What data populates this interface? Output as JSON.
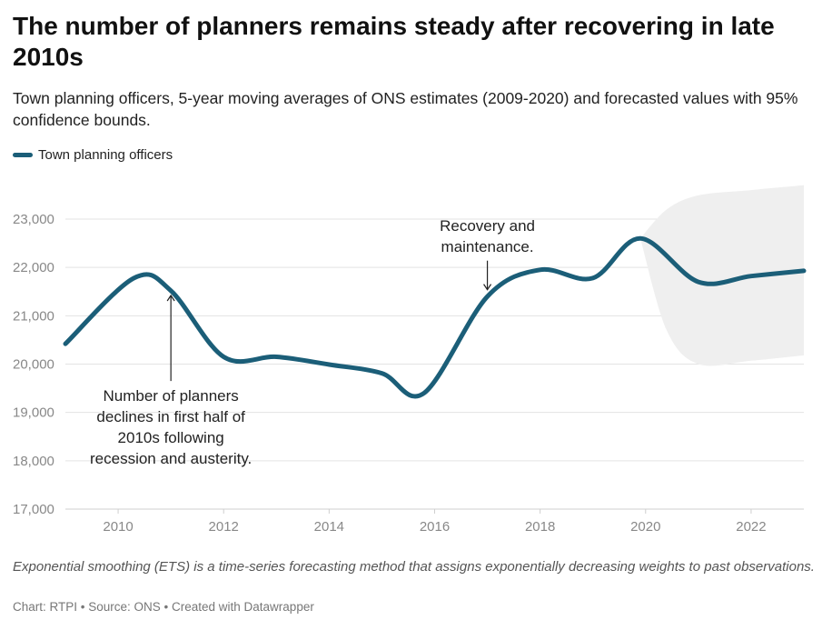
{
  "title": "The number of planners remains steady after recovering in late 2010s",
  "subtitle": "Town planning officers, 5-year moving averages of ONS estimates (2009-2020) and forecasted values with 95% confidence bounds.",
  "note": "Exponential smoothing (ETS) is a time-series forecasting method that assigns exponentially decreasing weights to past observations.",
  "credit": "Chart: RTPI • Source: ONS • Created with Datawrapper",
  "chart_data": {
    "type": "line",
    "title": "The number of planners remains steady after recovering in late 2010s",
    "subtitle": "Town planning officers, 5-year moving averages of ONS estimates (2009-2020) and forecasted values with 95% confidence bounds.",
    "xlabel": "",
    "ylabel": "",
    "xlim": [
      2009,
      2023
    ],
    "ylim": [
      17000,
      23000
    ],
    "x_ticks": [
      2010,
      2012,
      2014,
      2016,
      2018,
      2020,
      2022
    ],
    "y_ticks": [
      17000,
      18000,
      19000,
      20000,
      21000,
      22000,
      23000
    ],
    "y_tick_labels": [
      "17,000",
      "18,000",
      "19,000",
      "20,000",
      "21,000",
      "22,000",
      "23,000"
    ],
    "x_tick_labels": [
      "2010",
      "2012",
      "2014",
      "2016",
      "2018",
      "2020",
      "2022"
    ],
    "grid": "horizontal",
    "legend_position": "top-left",
    "series": [
      {
        "name": "Town planning officers",
        "color": "#1b5e78",
        "x": [
          2009,
          2010.3,
          2011,
          2012,
          2013,
          2014,
          2015,
          2015.8,
          2017,
          2018,
          2019,
          2019.9,
          2021,
          2022,
          2023
        ],
        "values": [
          20420,
          21780,
          21520,
          20150,
          20150,
          19990,
          19810,
          19400,
          21400,
          21950,
          21780,
          22600,
          21700,
          21820,
          21930
        ]
      }
    ],
    "confidence_band": {
      "color": "#efefef",
      "x": [
        2019.9,
        2020.4,
        2021,
        2022,
        2023
      ],
      "upper": [
        22600,
        23200,
        23490,
        23600,
        23700
      ],
      "lower": [
        22600,
        20700,
        20000,
        20070,
        20180
      ]
    },
    "annotations": [
      {
        "lines": [
          "Recovery and",
          "maintenance."
        ],
        "arrow_x": 2017,
        "arrow_from_y": 22140,
        "arrow_to_y": 21540
      },
      {
        "lines": [
          "Number of planners",
          "declines in first half of",
          "2010s following",
          "recession and austerity."
        ],
        "arrow_x": 2011,
        "arrow_from_y": 19650,
        "arrow_to_y": 21420
      }
    ]
  }
}
